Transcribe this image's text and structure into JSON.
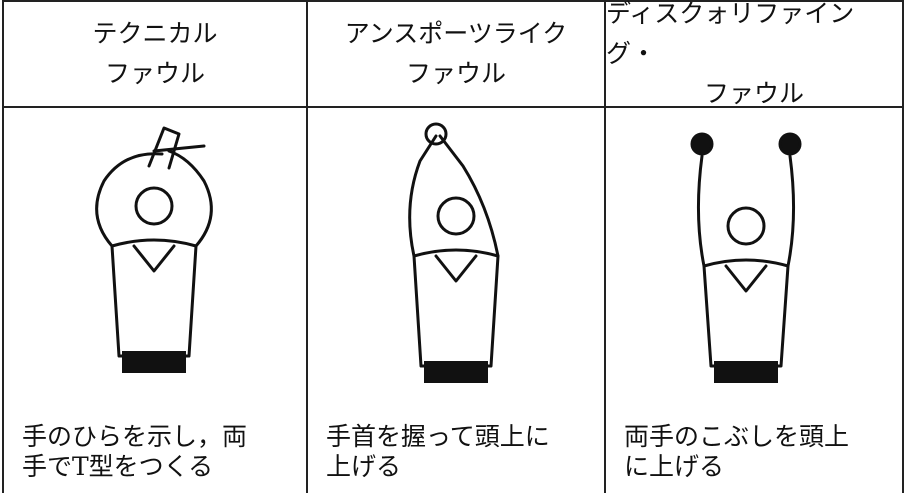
{
  "table": {
    "headers": [
      [
        "テクニカル",
        "ファウル"
      ],
      [
        "アンスポーツライク",
        "ファウル"
      ],
      [
        "ディスクォリファイング・",
        "ファウル"
      ]
    ],
    "descriptions": [
      [
        "手のひらを示し，両",
        "手でT型をつくる"
      ],
      [
        "手首を握って頭上に",
        "上げる"
      ],
      [
        "両手のこぶしを頭上",
        "に上げる"
      ]
    ]
  }
}
